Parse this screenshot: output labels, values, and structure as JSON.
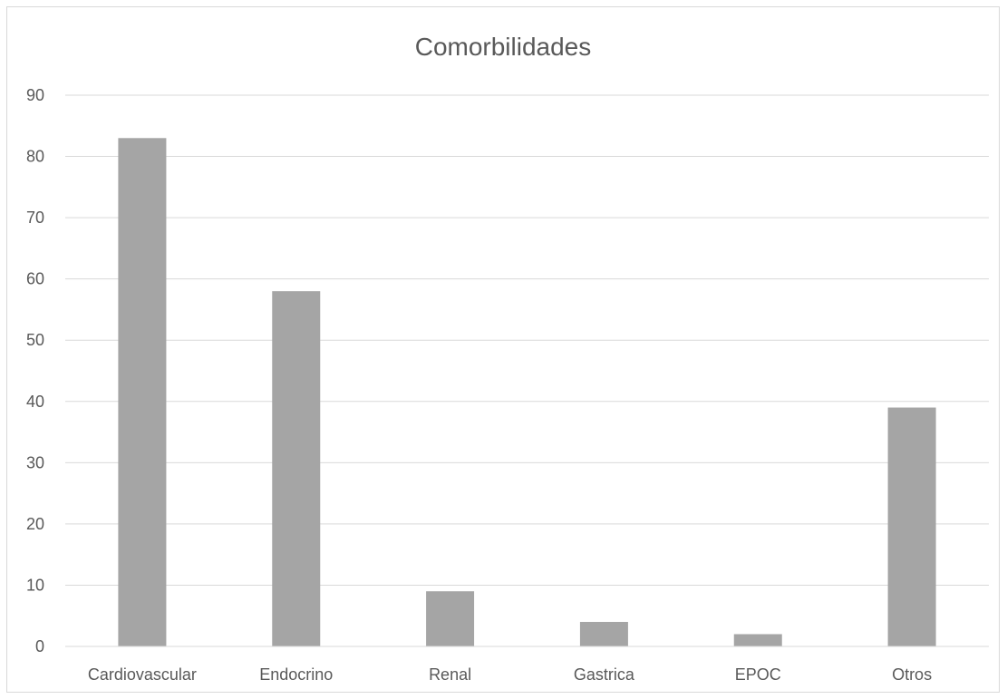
{
  "chart_data": {
    "type": "bar",
    "title": "Comorbilidades",
    "xlabel": "",
    "ylabel": "",
    "categories": [
      "Cardiovascular",
      "Endocrino",
      "Renal",
      "Gastrica",
      "EPOC",
      "Otros"
    ],
    "values": [
      83,
      58,
      9,
      4,
      2,
      39
    ],
    "ylim": [
      0,
      90
    ],
    "yticks": [
      0,
      10,
      20,
      30,
      40,
      50,
      60,
      70,
      80,
      90
    ],
    "grid": true,
    "legend": "none",
    "bar_color": "#a5a5a5"
  }
}
